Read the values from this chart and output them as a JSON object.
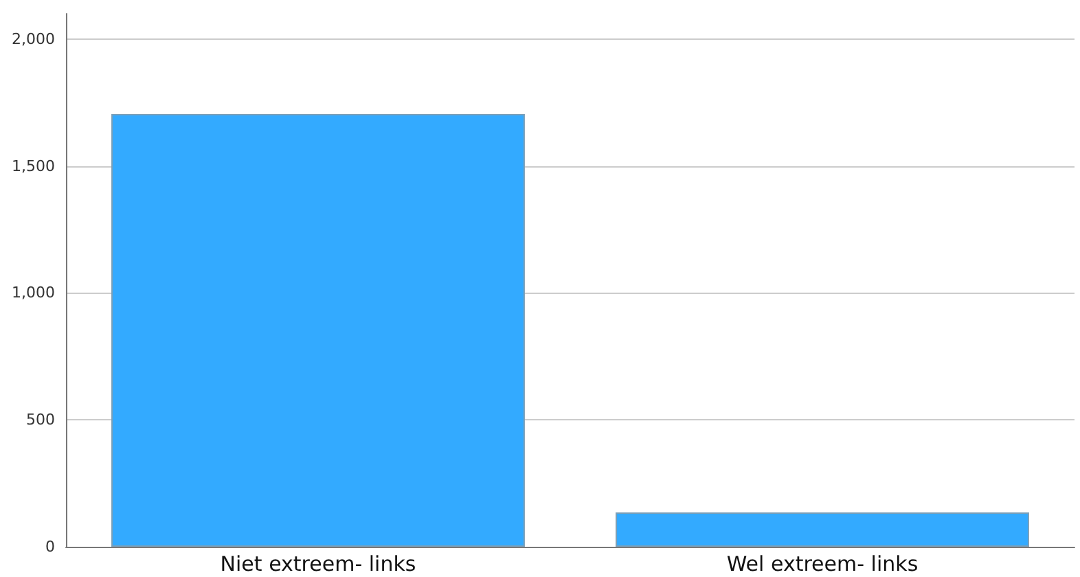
{
  "chart_data": {
    "type": "bar",
    "categories": [
      "Niet extreem- links",
      "Wel extreem- links"
    ],
    "values": [
      1705,
      135
    ],
    "color": "#33aaff",
    "ylim": [
      0,
      2100
    ],
    "yticks": [
      {
        "value": 0,
        "label": "0"
      },
      {
        "value": 500,
        "label": "500"
      },
      {
        "value": 1000,
        "label": "1,000"
      },
      {
        "value": 1500,
        "label": "1,500"
      },
      {
        "value": 2000,
        "label": "2,000"
      }
    ],
    "grid": "y"
  }
}
